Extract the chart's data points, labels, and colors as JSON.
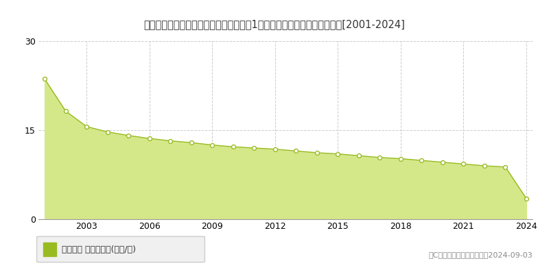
{
  "title": "愛知県知多郡南知多町大字山海字荒布赆1２０番２　地価公示　地価推移[2001-2024]",
  "years": [
    2001,
    2002,
    2003,
    2004,
    2005,
    2006,
    2007,
    2008,
    2009,
    2010,
    2011,
    2012,
    2013,
    2014,
    2015,
    2016,
    2017,
    2018,
    2019,
    2020,
    2021,
    2022,
    2023,
    2024
  ],
  "values": [
    23.6,
    18.2,
    15.6,
    14.7,
    14.1,
    13.6,
    13.2,
    12.9,
    12.5,
    12.2,
    12.0,
    11.8,
    11.5,
    11.2,
    11.0,
    10.7,
    10.4,
    10.2,
    9.9,
    9.6,
    9.3,
    9.0,
    8.8,
    3.5
  ],
  "line_color": "#99bb22",
  "fill_color": "#d4e88a",
  "marker_face_color": "#ffffff",
  "marker_edge_color": "#99bb22",
  "bg_color": "#ffffff",
  "plot_bg_color": "#ffffff",
  "grid_color": "#cccccc",
  "ylim": [
    0,
    30
  ],
  "yticks": [
    0,
    15,
    30
  ],
  "legend_label": "地価公示 平均坊単価(万円/坊)",
  "copyright_text": "（C）土地価格ドットコム　2024-09-03"
}
